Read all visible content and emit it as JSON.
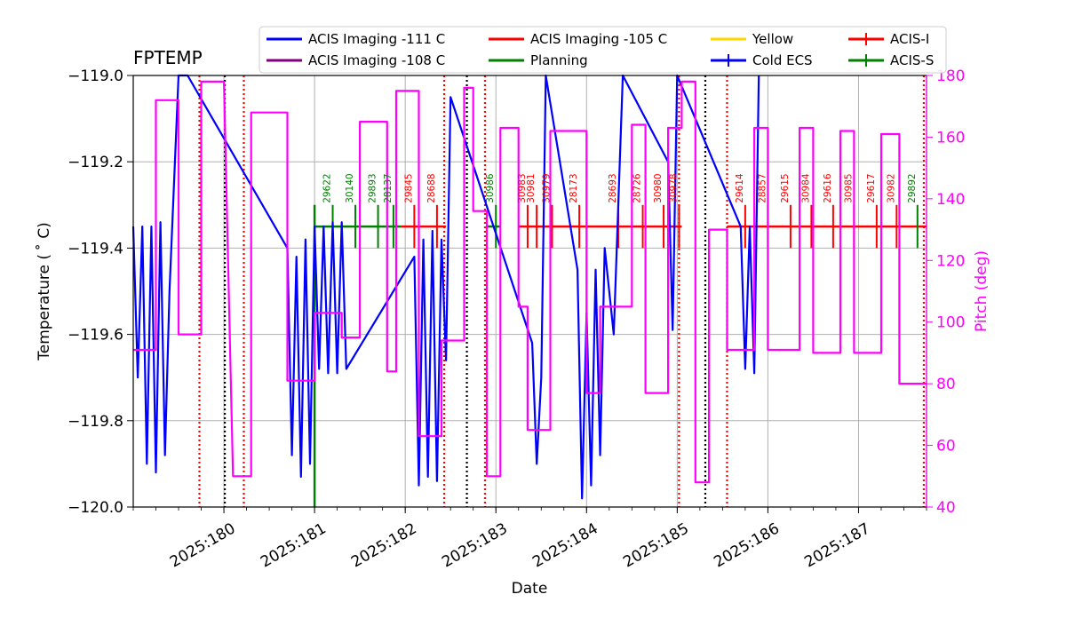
{
  "chart_data": {
    "type": "line",
    "title": "FPTEMP",
    "xlabel": "Date",
    "ylabel": "Temperature ($^\\circ$C)",
    "ylabel_display": "Temperature ( ˚ C)",
    "y2label": "Pitch (deg)",
    "xlim": [
      179.0,
      187.75
    ],
    "ylim": [
      -120.0,
      -119.0
    ],
    "y2lim": [
      40,
      180
    ],
    "xticks": [
      180,
      181,
      182,
      183,
      184,
      185,
      186,
      187
    ],
    "xtick_labels": [
      "2025:180",
      "2025:181",
      "2025:182",
      "2025:183",
      "2025:184",
      "2025:185",
      "2025:186",
      "2025:187"
    ],
    "yticks": [
      -120.0,
      -119.8,
      -119.6,
      -119.4,
      -119.2,
      -119.0
    ],
    "ytick_labels": [
      "−120.0",
      "−119.8",
      "−119.6",
      "−119.4",
      "−119.2",
      "−119.0"
    ],
    "y2ticks": [
      40,
      60,
      80,
      100,
      120,
      140,
      160,
      180
    ],
    "y2tick_labels": [
      "40",
      "60",
      "80",
      "100",
      "120",
      "140",
      "160",
      "180"
    ],
    "grid": true,
    "legend": {
      "placement": "top",
      "entries": [
        {
          "label": "ACIS Imaging -111 C",
          "color": "#0000ff",
          "kind": "line"
        },
        {
          "label": "ACIS Imaging -108 C",
          "color": "#800080",
          "kind": "line"
        },
        {
          "label": "ACIS Imaging -105 C",
          "color": "#ff0000",
          "kind": "line"
        },
        {
          "label": "Planning",
          "color": "#008000",
          "kind": "line"
        },
        {
          "label": "Yellow",
          "color": "#ffd700",
          "kind": "line"
        },
        {
          "label": "Cold ECS",
          "color": "#0000ff",
          "kind": "errbar"
        },
        {
          "label": "ACIS-I",
          "color": "#ff0000",
          "kind": "errbar"
        },
        {
          "label": "ACIS-S",
          "color": "#008000",
          "kind": "errbar"
        }
      ]
    },
    "colors": {
      "temperature": "#0000ff",
      "pitch": "#ff00ff",
      "planning": "#008000",
      "acis_i": "#ff0000",
      "acis_s": "#008000",
      "grid": "#b0b0b0"
    },
    "series": [
      {
        "name": "ACIS Imaging -111 C",
        "axis": "left",
        "x": [
          179.0,
          179.05,
          179.1,
          179.15,
          179.2,
          179.25,
          179.3,
          179.35,
          179.4,
          179.5,
          179.55,
          179.6,
          180.7,
          180.75,
          180.8,
          180.85,
          180.9,
          180.95,
          181.0,
          181.05,
          181.1,
          181.15,
          181.2,
          181.25,
          181.3,
          181.35,
          182.1,
          182.15,
          182.2,
          182.25,
          182.3,
          182.35,
          182.4,
          182.45,
          182.5,
          183.4,
          183.45,
          183.5,
          183.55,
          183.9,
          183.95,
          184.0,
          184.05,
          184.1,
          184.15,
          184.2,
          184.3,
          184.4,
          184.9,
          184.95,
          185.0,
          185.7,
          185.75,
          185.8,
          185.85,
          185.9
        ],
        "y": [
          -119.35,
          -119.7,
          -119.35,
          -119.9,
          -119.35,
          -119.92,
          -119.34,
          -119.88,
          -119.5,
          -119.0,
          -119.0,
          -119.0,
          -119.4,
          -119.88,
          -119.42,
          -119.93,
          -119.38,
          -119.9,
          -119.35,
          -119.68,
          -119.35,
          -119.69,
          -119.34,
          -119.69,
          -119.34,
          -119.68,
          -119.42,
          -119.95,
          -119.38,
          -119.93,
          -119.36,
          -119.94,
          -119.38,
          -119.66,
          -119.05,
          -119.62,
          -119.9,
          -119.7,
          -119.0,
          -119.45,
          -119.98,
          -119.55,
          -119.95,
          -119.45,
          -119.88,
          -119.4,
          -119.6,
          -119.0,
          -119.2,
          -119.59,
          -119.0,
          -119.35,
          -119.68,
          -119.35,
          -119.69,
          -119.0
        ]
      },
      {
        "name": "Pitch (deg)",
        "axis": "right",
        "x": [
          179.0,
          179.25,
          179.25,
          179.5,
          179.5,
          179.75,
          179.75,
          180.0,
          180.1,
          180.3,
          180.3,
          180.7,
          180.7,
          181.0,
          181.0,
          181.3,
          181.3,
          181.5,
          181.5,
          181.8,
          181.8,
          181.9,
          181.9,
          182.15,
          182.15,
          182.4,
          182.4,
          182.65,
          182.65,
          182.75,
          182.75,
          182.9,
          182.9,
          183.05,
          183.05,
          183.25,
          183.25,
          183.35,
          183.35,
          183.6,
          183.6,
          184.0,
          184.0,
          184.15,
          184.15,
          184.5,
          184.5,
          184.65,
          184.65,
          184.9,
          184.9,
          185.05,
          185.05,
          185.2,
          185.2,
          185.35,
          185.35,
          185.55,
          185.55,
          185.85,
          185.85,
          186.0,
          186.0,
          186.35,
          186.35,
          186.5,
          186.5,
          186.8,
          186.8,
          186.95,
          186.95,
          187.25,
          187.25,
          187.45,
          187.45,
          187.75
        ],
        "y": [
          91,
          91,
          172,
          172,
          96,
          96,
          178,
          178,
          50,
          50,
          168,
          168,
          81,
          81,
          103,
          103,
          95,
          95,
          165,
          165,
          84,
          84,
          175,
          175,
          63,
          63,
          94,
          94,
          176,
          176,
          136,
          136,
          50,
          50,
          163,
          163,
          105,
          105,
          65,
          65,
          162,
          162,
          77,
          77,
          105,
          105,
          164,
          164,
          77,
          77,
          163,
          163,
          178,
          178,
          48,
          48,
          130,
          130,
          91,
          91,
          163,
          163,
          91,
          91,
          163,
          163,
          90,
          90,
          162,
          162,
          90,
          90,
          161,
          161,
          80,
          80
        ]
      }
    ],
    "acis_i_bar": {
      "y": -119.35,
      "x_start": 181.95,
      "x_end": 182.45,
      "x_start2": 183.25,
      "x_end2": 185.05,
      "x_start3": 185.55,
      "x_end3": 187.75
    },
    "acis_s_bar": {
      "y": -119.35,
      "x_start": 181.0,
      "x_end": 181.95,
      "x_start2": 182.9,
      "x_end2": 183.05
    },
    "obsids": [
      {
        "label": "29622",
        "x": 181.2,
        "color": "#008000"
      },
      {
        "label": "30140",
        "x": 181.45,
        "color": "#008000"
      },
      {
        "label": "29893",
        "x": 181.7,
        "color": "#008000"
      },
      {
        "label": "28137",
        "x": 181.87,
        "color": "#008000"
      },
      {
        "label": "29845",
        "x": 182.1,
        "color": "#ff0000"
      },
      {
        "label": "28688",
        "x": 182.35,
        "color": "#ff0000"
      },
      {
        "label": "30986",
        "x": 183.0,
        "color": "#008000"
      },
      {
        "label": "30983",
        "x": 183.35,
        "color": "#ff0000"
      },
      {
        "label": "30981",
        "x": 183.45,
        "color": "#ff0000"
      },
      {
        "label": "30979",
        "x": 183.62,
        "color": "#ff0000"
      },
      {
        "label": "28173",
        "x": 183.92,
        "color": "#ff0000"
      },
      {
        "label": "28693",
        "x": 184.35,
        "color": "#ff0000"
      },
      {
        "label": "28726",
        "x": 184.62,
        "color": "#ff0000"
      },
      {
        "label": "30980",
        "x": 184.85,
        "color": "#ff0000"
      },
      {
        "label": "30978",
        "x": 185.02,
        "color": "#ff0000"
      },
      {
        "label": "29614",
        "x": 185.75,
        "color": "#ff0000"
      },
      {
        "label": "28857",
        "x": 186.0,
        "color": "#ff0000"
      },
      {
        "label": "29615",
        "x": 186.25,
        "color": "#ff0000"
      },
      {
        "label": "30984",
        "x": 186.48,
        "color": "#ff0000"
      },
      {
        "label": "29616",
        "x": 186.72,
        "color": "#ff0000"
      },
      {
        "label": "30985",
        "x": 186.95,
        "color": "#ff0000"
      },
      {
        "label": "29617",
        "x": 187.2,
        "color": "#ff0000"
      },
      {
        "label": "30982",
        "x": 187.42,
        "color": "#ff0000"
      },
      {
        "label": "29892",
        "x": 187.65,
        "color": "#008000"
      }
    ],
    "vlines_red": [
      179.73,
      180.22,
      182.43,
      182.88,
      185.02,
      185.55,
      187.72
    ],
    "vlines_black": [
      180.01,
      182.68,
      185.31
    ],
    "planning_line": {
      "x": 181.0,
      "y_bottom": -120.0,
      "y_top": -119.3
    }
  }
}
